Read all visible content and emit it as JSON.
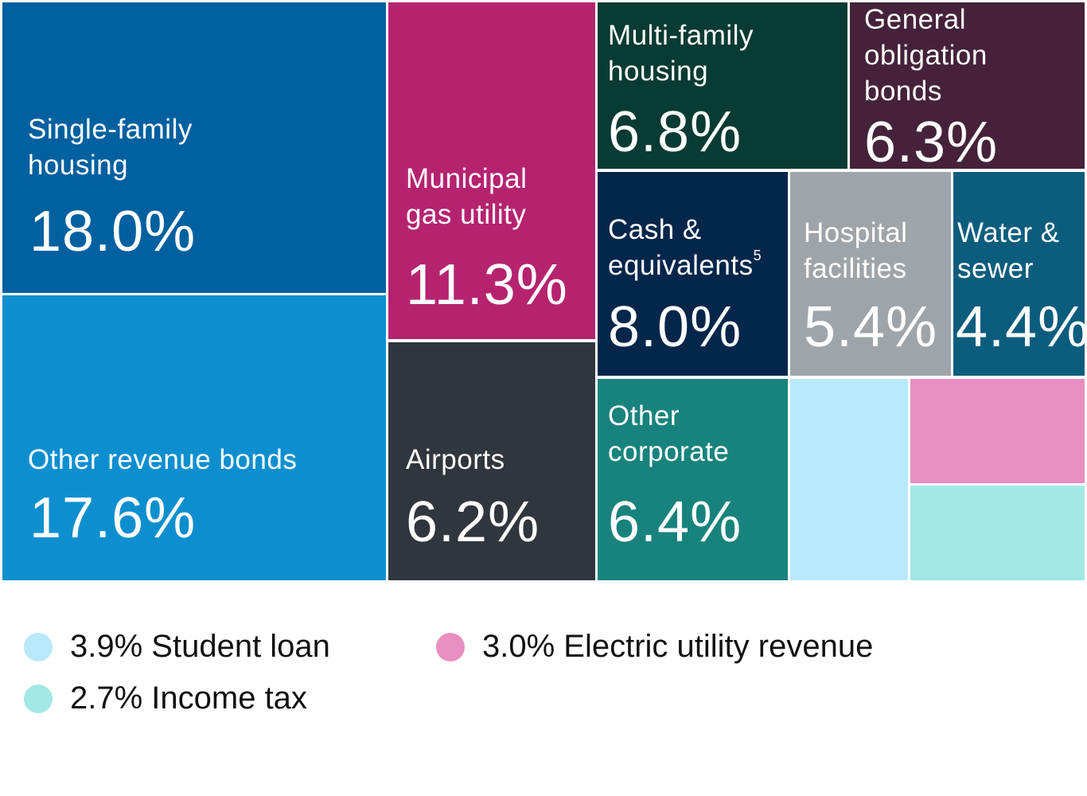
{
  "chart_data": {
    "type": "treemap",
    "unit": "%",
    "items": [
      {
        "label": "Single-family housing",
        "value": 18.0,
        "value_label": "18.0%",
        "color": "#0060a0"
      },
      {
        "label": "Other revenue bonds",
        "value": 17.6,
        "value_label": "17.6%",
        "color": "#0d8fcf"
      },
      {
        "label": "Municipal gas utility",
        "value": 11.3,
        "value_label": "11.3%",
        "color": "#b5236f"
      },
      {
        "label": "Airports",
        "value": 6.2,
        "value_label": "6.2%",
        "color": "#2f363d"
      },
      {
        "label": "Multi-family housing",
        "value": 6.8,
        "value_label": "6.8%",
        "color": "#083b33"
      },
      {
        "label": "General obligation bonds",
        "value": 6.3,
        "value_label": "6.3%",
        "color": "#45223a"
      },
      {
        "label": "Cash & equivalents",
        "superscript": "5",
        "value": 8.0,
        "value_label": "8.0%",
        "color": "#04264a"
      },
      {
        "label": "Hospital facilities",
        "value": 5.4,
        "value_label": "5.4%",
        "color": "#9ea5aa"
      },
      {
        "label": "Water & sewer",
        "value": 4.4,
        "value_label": "4.4%",
        "color": "#0c5d7d"
      },
      {
        "label": "Other corporate",
        "value": 6.4,
        "value_label": "6.4%",
        "color": "#18837d"
      },
      {
        "label": "Student loan",
        "value": 3.9,
        "value_label": "3.9%",
        "color": "#b8e9fb"
      },
      {
        "label": "Electric utility revenue",
        "value": 3.0,
        "value_label": "3.0%",
        "color": "#e78fc0"
      },
      {
        "label": "Income tax",
        "value": 2.7,
        "value_label": "2.7%",
        "color": "#a2e8e4"
      }
    ]
  },
  "legend": [
    {
      "text": "3.9% Student loan",
      "color": "#b8e9fb"
    },
    {
      "text": "3.0% Electric utility revenue",
      "color": "#e78fc0"
    },
    {
      "text": "2.7% Income tax",
      "color": "#a2e8e4"
    }
  ]
}
